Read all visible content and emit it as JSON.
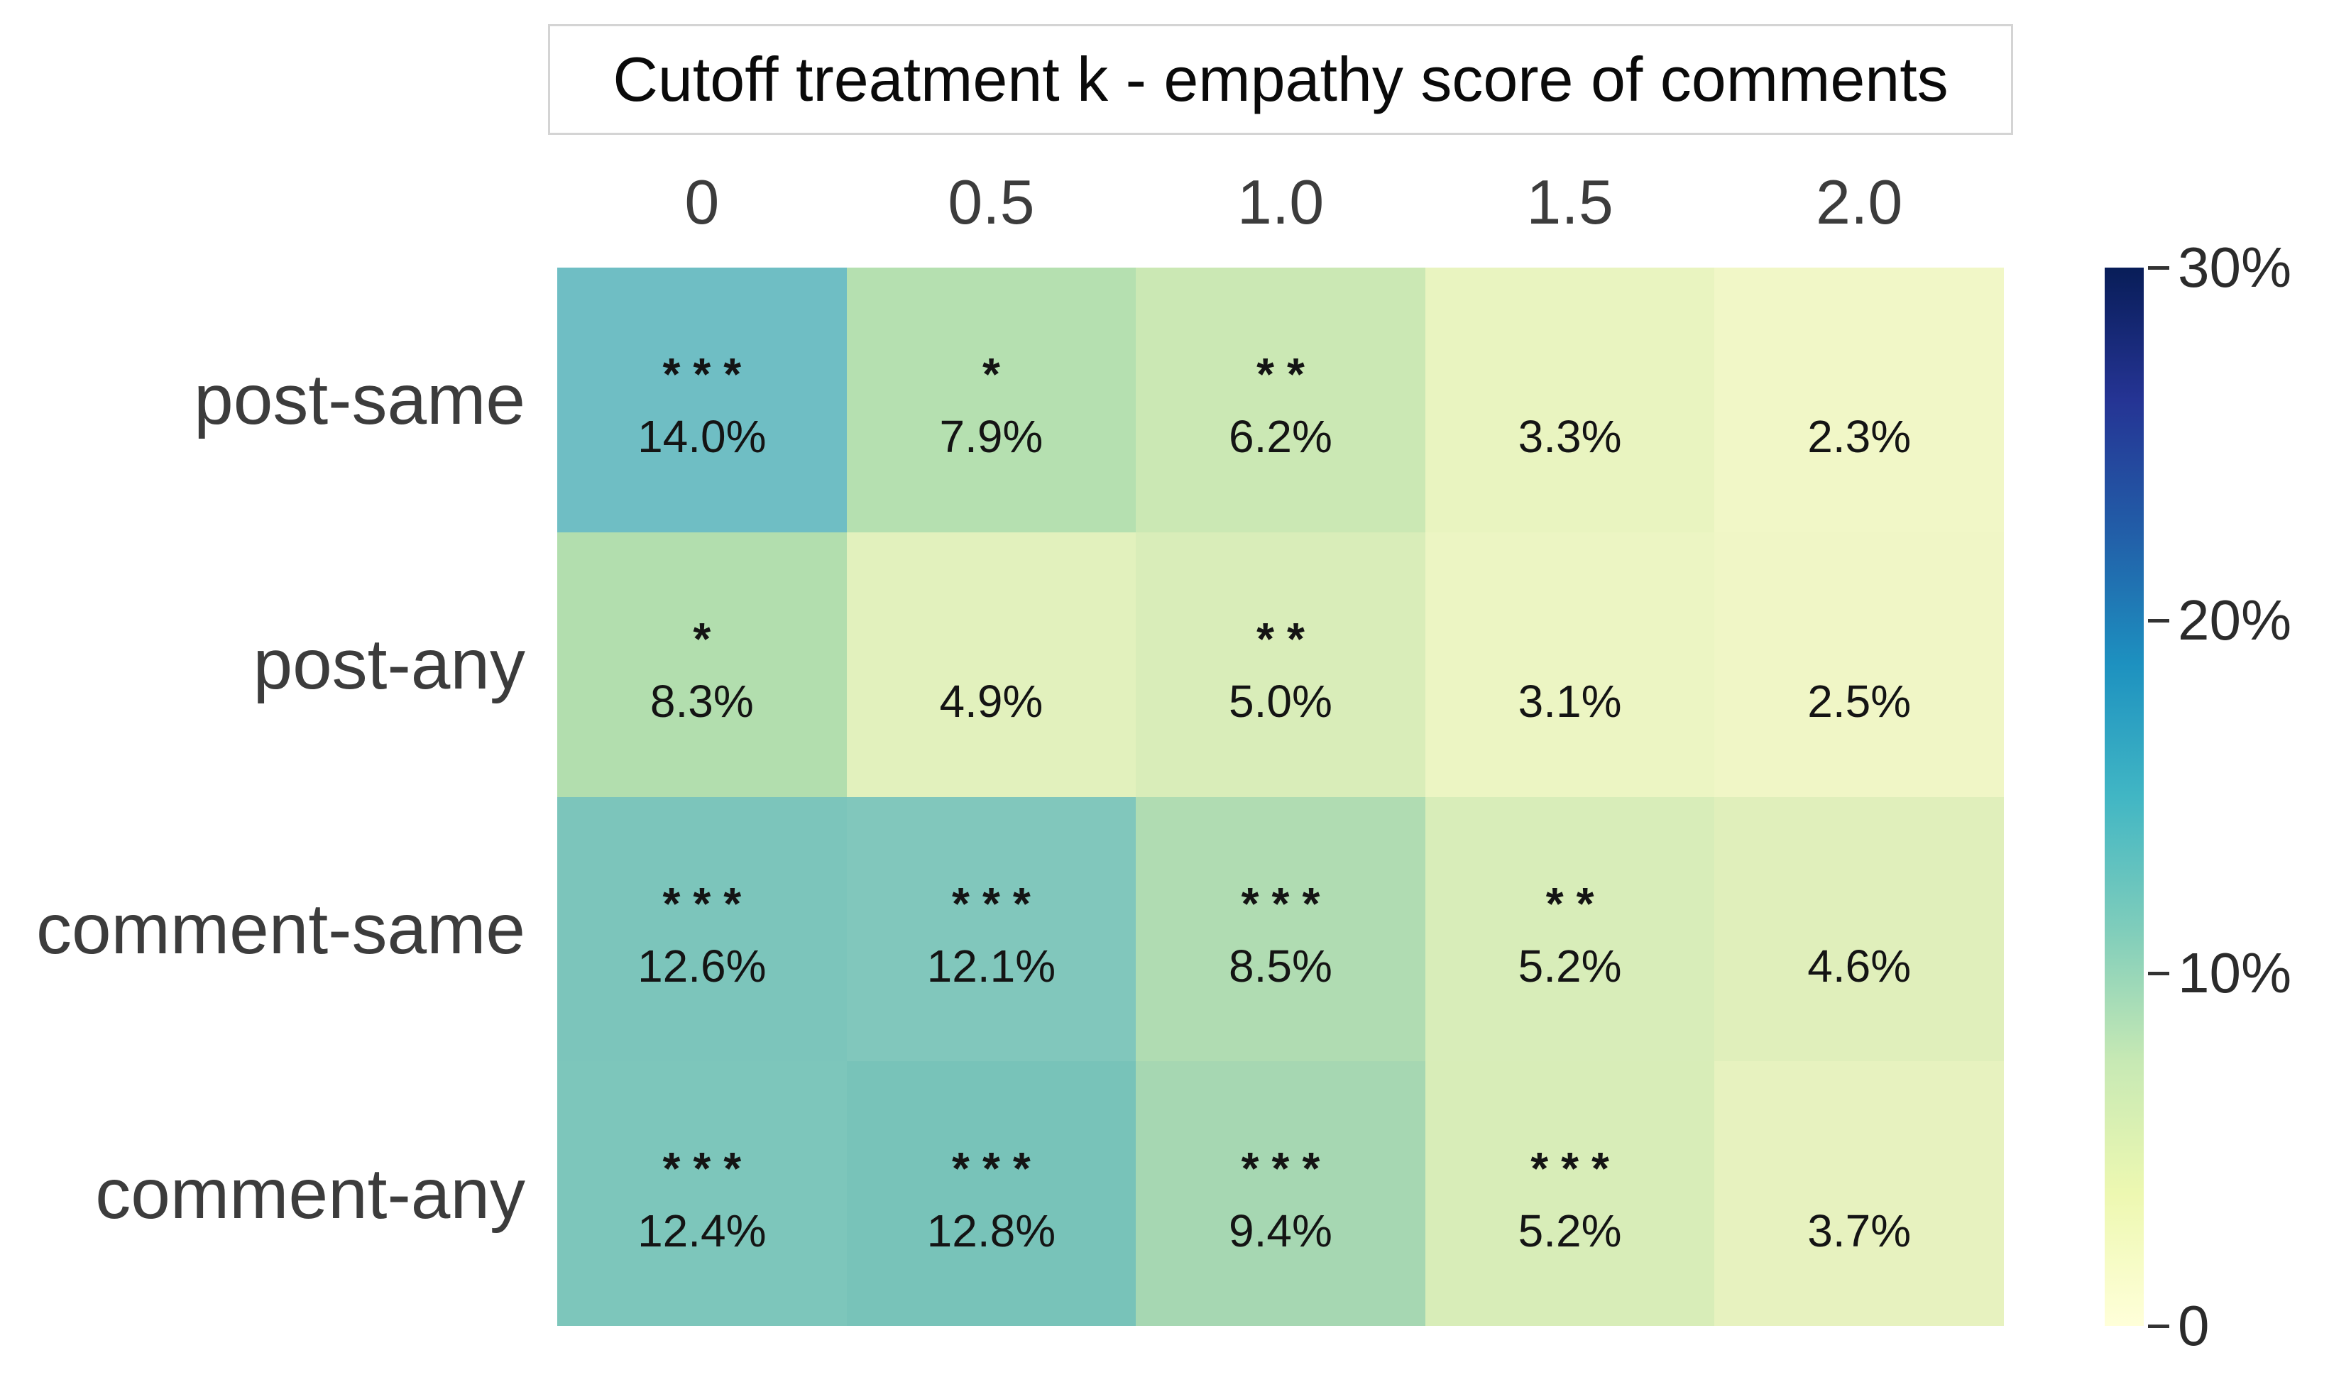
{
  "chart_data": {
    "type": "heatmap",
    "title": "Cutoff treatment k - empathy score of comments",
    "x_axis": {
      "tick_labels": [
        "0",
        "0.5",
        "1.0",
        "1.5",
        "2.0"
      ]
    },
    "y_axis": {
      "tick_labels": [
        "post-same",
        "post-any",
        "comment-same",
        "comment-any"
      ]
    },
    "value_range_percent": [
      0,
      30
    ],
    "values_percent": [
      [
        14.0,
        7.9,
        6.2,
        3.3,
        2.3
      ],
      [
        8.3,
        4.9,
        5.0,
        3.1,
        2.5
      ],
      [
        12.6,
        12.1,
        8.5,
        5.2,
        4.6
      ],
      [
        12.4,
        12.8,
        9.4,
        5.2,
        3.7
      ]
    ],
    "cell_labels": [
      [
        "14.0%",
        "7.9%",
        "6.2%",
        "3.3%",
        "2.3%"
      ],
      [
        "8.3%",
        "4.9%",
        "5.0%",
        "3.1%",
        "2.5%"
      ],
      [
        "12.6%",
        "12.1%",
        "8.5%",
        "5.2%",
        "4.6%"
      ],
      [
        "12.4%",
        "12.8%",
        "9.4%",
        "5.2%",
        "3.7%"
      ]
    ],
    "significance": [
      [
        "***",
        "*",
        "**",
        "",
        ""
      ],
      [
        "*",
        "",
        "**",
        "",
        ""
      ],
      [
        "***",
        "***",
        "***",
        "**",
        ""
      ],
      [
        "***",
        "***",
        "***",
        "***",
        ""
      ]
    ],
    "cell_colors": [
      [
        "#6fbec4",
        "#b5e0b0",
        "#cbe8b4",
        "#e9f4c0",
        "#f1f7c7"
      ],
      [
        "#b2deae",
        "#e2f1bd",
        "#d9edb9",
        "#ecf5c3",
        "#f0f6c6"
      ],
      [
        "#7cc5bb",
        "#81c7bc",
        "#b0dcb2",
        "#d8edb9",
        "#e0efbb"
      ],
      [
        "#7dc6bb",
        "#78c3b9",
        "#a6d7b2",
        "#d8edb8",
        "#e7f2bf"
      ]
    ],
    "colorbar": {
      "position": "right",
      "tick_labels": [
        "30%",
        "20%",
        "10%",
        "0"
      ],
      "tick_values": [
        30,
        20,
        10,
        0
      ],
      "gradient_top_to_bottom": [
        "#081d58",
        "#253494",
        "#225ea8",
        "#1d91c0",
        "#41b6c4",
        "#7fcdbb",
        "#c7e9b4",
        "#edf8b1",
        "#ffffd9"
      ]
    },
    "grid": false
  }
}
